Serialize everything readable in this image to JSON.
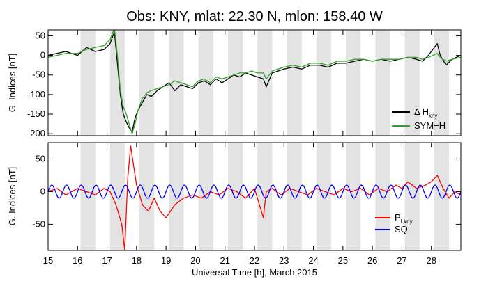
{
  "chart_data": [
    {
      "type": "line",
      "title": "Obs: KNY, mlat:   22.30 N,    mlon:  158.40 W",
      "xlabel": "",
      "ylabel": "G. Indices [nT]",
      "xlim": [
        15,
        29
      ],
      "ylim": [
        -205,
        65
      ],
      "xticks": [
        15,
        16,
        17,
        18,
        19,
        20,
        21,
        22,
        23,
        24,
        25,
        26,
        27,
        28
      ],
      "yticks": [
        50,
        0,
        -50,
        -100,
        -150,
        -200
      ],
      "shaded_night_intervals": [
        [
          16.1,
          16.6
        ],
        [
          17.1,
          17.6
        ],
        [
          18.1,
          18.6
        ],
        [
          19.1,
          19.6
        ],
        [
          20.1,
          20.6
        ],
        [
          21.1,
          21.6
        ],
        [
          22.1,
          22.6
        ],
        [
          23.1,
          23.6
        ],
        [
          24.1,
          24.6
        ],
        [
          25.1,
          25.6
        ],
        [
          26.1,
          26.6
        ],
        [
          27.1,
          27.6
        ],
        [
          28.1,
          28.6
        ]
      ],
      "legend_position": "bottom-right",
      "series": [
        {
          "name": "Δ H",
          "name_sub": "kny",
          "color": "#000000",
          "x": [
            15.0,
            15.3,
            15.6,
            16.0,
            16.3,
            16.6,
            16.9,
            17.1,
            17.25,
            17.35,
            17.45,
            17.55,
            17.65,
            17.75,
            17.85,
            17.95,
            18.05,
            18.2,
            18.35,
            18.5,
            18.7,
            18.9,
            19.1,
            19.3,
            19.5,
            19.7,
            19.9,
            20.1,
            20.3,
            20.5,
            20.7,
            20.9,
            21.1,
            21.3,
            21.5,
            21.7,
            21.9,
            22.1,
            22.3,
            22.4,
            22.6,
            22.8,
            23.0,
            23.3,
            23.6,
            23.9,
            24.2,
            24.5,
            24.8,
            25.1,
            25.4,
            25.7,
            26.0,
            26.3,
            26.6,
            26.9,
            27.2,
            27.5,
            27.7,
            27.9,
            28.05,
            28.2,
            28.3,
            28.5,
            28.7,
            29.0
          ],
          "y": [
            0,
            5,
            10,
            0,
            20,
            10,
            15,
            30,
            60,
            -20,
            -100,
            -150,
            -170,
            -185,
            -195,
            -160,
            -140,
            -120,
            -100,
            -105,
            -90,
            -80,
            -70,
            -90,
            -75,
            -80,
            -85,
            -70,
            -65,
            -75,
            -60,
            -70,
            -60,
            -50,
            -55,
            -45,
            -50,
            -55,
            -60,
            -80,
            -45,
            -40,
            -35,
            -30,
            -35,
            -25,
            -25,
            -30,
            -20,
            -20,
            -15,
            -10,
            -15,
            -10,
            -15,
            -10,
            -5,
            -10,
            -15,
            0,
            15,
            30,
            0,
            -25,
            -10,
            0
          ]
        },
        {
          "name": "SYM−H",
          "color": "#33a02c",
          "x": [
            15.0,
            15.3,
            15.6,
            16.0,
            16.3,
            16.6,
            16.9,
            17.1,
            17.25,
            17.35,
            17.45,
            17.55,
            17.65,
            17.75,
            17.85,
            17.95,
            18.05,
            18.2,
            18.35,
            18.5,
            18.7,
            18.9,
            19.1,
            19.3,
            19.5,
            19.7,
            19.9,
            20.1,
            20.3,
            20.5,
            20.7,
            20.9,
            21.1,
            21.3,
            21.5,
            21.7,
            21.9,
            22.1,
            22.3,
            22.4,
            22.6,
            22.8,
            23.0,
            23.3,
            23.6,
            23.9,
            24.2,
            24.5,
            24.8,
            25.1,
            25.4,
            25.7,
            26.0,
            26.3,
            26.6,
            26.9,
            27.2,
            27.5,
            27.7,
            27.9,
            28.05,
            28.2,
            28.3,
            28.5,
            28.7,
            29.0
          ],
          "y": [
            -5,
            0,
            5,
            5,
            15,
            20,
            25,
            40,
            70,
            0,
            -90,
            -130,
            -150,
            -175,
            -200,
            -175,
            -140,
            -110,
            -95,
            -90,
            -85,
            -80,
            -75,
            -65,
            -70,
            -75,
            -80,
            -65,
            -60,
            -70,
            -55,
            -60,
            -55,
            -50,
            -45,
            -45,
            -40,
            -45,
            -45,
            -60,
            -40,
            -35,
            -30,
            -25,
            -30,
            -20,
            -20,
            -25,
            -15,
            -15,
            -10,
            -10,
            -15,
            -10,
            -10,
            -10,
            -5,
            -5,
            -10,
            -5,
            0,
            5,
            -5,
            -15,
            -10,
            -5
          ]
        }
      ]
    },
    {
      "type": "line",
      "title": "",
      "xlabel": "Universal Time [h], March 2015",
      "ylabel": "G. Indices [nT]",
      "xlim": [
        15,
        29
      ],
      "ylim": [
        -90,
        75
      ],
      "xticks": [
        15,
        16,
        17,
        18,
        19,
        20,
        21,
        22,
        23,
        24,
        25,
        26,
        27,
        28
      ],
      "yticks": [
        50,
        0,
        -50
      ],
      "shaded_night_intervals": [
        [
          16.1,
          16.6
        ],
        [
          17.1,
          17.6
        ],
        [
          18.1,
          18.6
        ],
        [
          19.1,
          19.6
        ],
        [
          20.1,
          20.6
        ],
        [
          21.1,
          21.6
        ],
        [
          22.1,
          22.6
        ],
        [
          23.1,
          23.6
        ],
        [
          24.1,
          24.6
        ],
        [
          25.1,
          25.6
        ],
        [
          26.1,
          26.6
        ],
        [
          27.1,
          27.6
        ],
        [
          28.1,
          28.6
        ]
      ],
      "legend_position": "bottom-right",
      "series": [
        {
          "name": "P",
          "name_sub": "I,kny",
          "color": "#ff0000",
          "x": [
            15.0,
            15.3,
            15.6,
            16.0,
            16.3,
            16.6,
            16.9,
            17.1,
            17.3,
            17.5,
            17.6,
            17.7,
            17.8,
            17.9,
            18.0,
            18.2,
            18.4,
            18.6,
            18.8,
            19.0,
            19.3,
            19.6,
            19.9,
            20.2,
            20.5,
            20.8,
            21.1,
            21.4,
            21.7,
            22.0,
            22.3,
            22.4,
            22.6,
            22.9,
            23.2,
            23.5,
            23.8,
            24.1,
            24.4,
            24.7,
            25.0,
            25.3,
            25.6,
            25.9,
            26.2,
            26.5,
            26.8,
            27.0,
            27.2,
            27.5,
            27.8,
            28.0,
            28.2,
            28.4,
            28.6,
            28.8,
            29.0
          ],
          "y": [
            0,
            5,
            -5,
            5,
            0,
            -5,
            5,
            0,
            -20,
            -50,
            -90,
            20,
            70,
            40,
            10,
            -20,
            -30,
            -10,
            -30,
            -40,
            -20,
            -10,
            -5,
            -10,
            0,
            -5,
            5,
            0,
            -10,
            5,
            -40,
            0,
            5,
            -5,
            5,
            0,
            -5,
            5,
            0,
            -5,
            5,
            0,
            5,
            -5,
            5,
            0,
            10,
            5,
            15,
            5,
            10,
            15,
            25,
            5,
            -10,
            0,
            -5
          ]
        },
        {
          "name": "SQ",
          "color": "#0000ff",
          "amplitude_nT": 10,
          "period_h": 0.5
        }
      ]
    }
  ]
}
